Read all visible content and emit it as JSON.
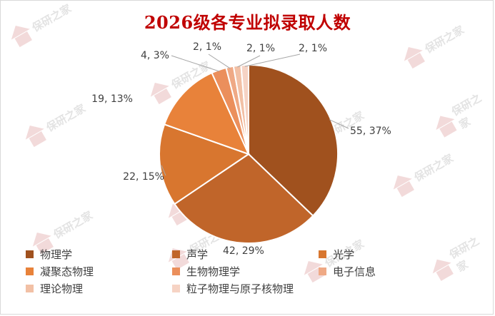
{
  "chart_data": {
    "type": "pie",
    "title": "2026级各专业拟录取人数",
    "categories": [
      "物理学",
      "声学",
      "光学",
      "凝聚态物理",
      "生物物理学",
      "电子信息",
      "理论物理",
      "粒子物理与原子核物理"
    ],
    "values": [
      55,
      42,
      22,
      19,
      4,
      2,
      2,
      2
    ],
    "labels": [
      "55, 37%",
      "42, 29%",
      "22, 15%",
      "19, 13%",
      "4, 3%",
      "2, 1%",
      "2, 1%",
      "2, 1%"
    ],
    "colors": [
      "#a0511e",
      "#c0652a",
      "#d8762f",
      "#e8823a",
      "#eb8f5c",
      "#efa985",
      "#f2c0a5",
      "#f6d3c4"
    ],
    "legend_position": "bottom"
  },
  "watermark": {
    "text": "保研之家"
  }
}
